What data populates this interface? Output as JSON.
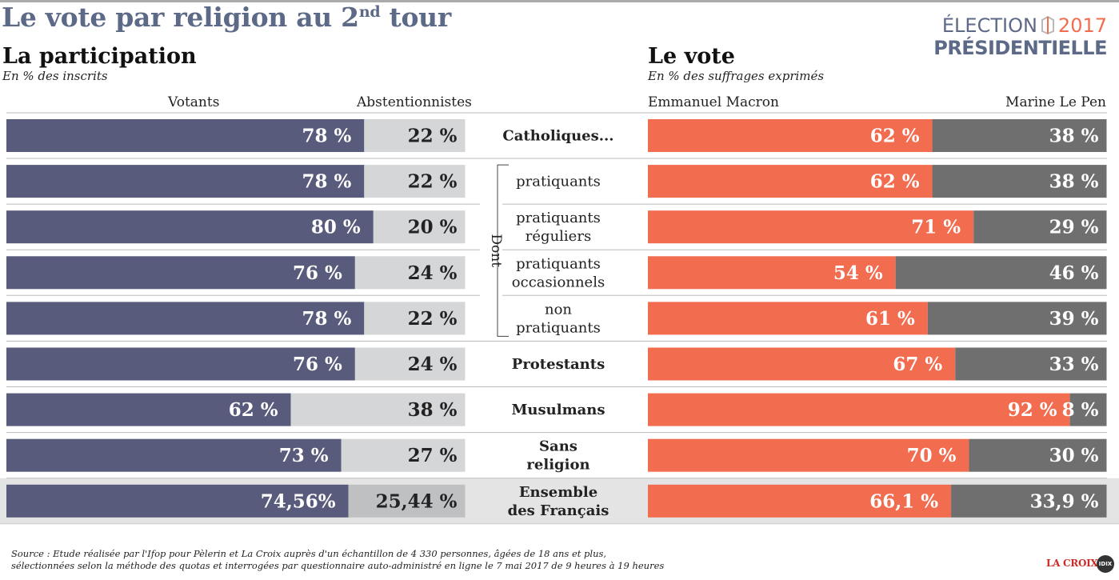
{
  "title_main": "Le vote par religion au 2",
  "title_sup": "nd",
  "title_end": " tour",
  "brand": {
    "line1_a": "ÉLECTION",
    "line1_year": "2017",
    "line2": "PRÉSIDENTIELLE"
  },
  "left_section": {
    "title": "La participation",
    "subtitle": "En % des inscrits"
  },
  "right_section": {
    "title": "Le vote",
    "subtitle": "En % des suffrages exprimés"
  },
  "colors": {
    "votants": "#585b7c",
    "abstention": "#d5d6d8",
    "abstention_total": "#bfc0c2",
    "macron": "#f26c4f",
    "lepen": "#6f6f70",
    "total_row_bg": "#e4e4e5"
  },
  "chart_data": [
    {
      "type": "bar",
      "stacked": true,
      "orientation": "horizontal",
      "categories": [
        "Catholiques...",
        "pratiquants",
        "pratiquants réguliers",
        "pratiquants occasionnels",
        "non pratiquants",
        "Protestants",
        "Musulmans",
        "Sans religion",
        "Ensemble des Français"
      ],
      "series": [
        {
          "name": "Votants",
          "values": [
            78,
            78,
            80,
            76,
            78,
            76,
            62,
            73,
            74.56
          ],
          "labels": [
            "78 %",
            "78 %",
            "80 %",
            "76 %",
            "78 %",
            "76 %",
            "62 %",
            "73 %",
            "74,56%"
          ]
        },
        {
          "name": "Abstentionnistes",
          "values": [
            22,
            22,
            20,
            24,
            22,
            24,
            38,
            27,
            25.44
          ],
          "labels": [
            "22 %",
            "22 %",
            "20 %",
            "24 %",
            "22 %",
            "24 %",
            "38 %",
            "27 %",
            "25,44 %"
          ]
        }
      ],
      "xlim": [
        0,
        100
      ]
    },
    {
      "type": "bar",
      "stacked": true,
      "orientation": "horizontal",
      "categories": [
        "Catholiques...",
        "pratiquants",
        "pratiquants réguliers",
        "pratiquants occasionnels",
        "non pratiquants",
        "Protestants",
        "Musulmans",
        "Sans religion",
        "Ensemble des Français"
      ],
      "series": [
        {
          "name": "Emmanuel Macron",
          "values": [
            62,
            62,
            71,
            54,
            61,
            67,
            92,
            70,
            66.1
          ],
          "labels": [
            "62 %",
            "62 %",
            "71 %",
            "54 %",
            "61 %",
            "67 %",
            "92 %",
            "70 %",
            "66,1 %"
          ]
        },
        {
          "name": "Marine Le Pen",
          "values": [
            38,
            38,
            29,
            46,
            39,
            33,
            8,
            30,
            33.9
          ],
          "labels": [
            "38 %",
            "38 %",
            "29 %",
            "46 %",
            "39 %",
            "33 %",
            "8 %",
            "30 %",
            "33,9 %"
          ]
        }
      ],
      "xlim": [
        0,
        100
      ]
    }
  ],
  "rows": [
    {
      "lines": [
        "Catholiques..."
      ],
      "bold": true
    },
    {
      "lines": [
        "pratiquants"
      ],
      "bold": false
    },
    {
      "lines": [
        "pratiquants",
        "réguliers"
      ],
      "bold": false
    },
    {
      "lines": [
        "pratiquants",
        "occasionnels"
      ],
      "bold": false
    },
    {
      "lines": [
        "non",
        "pratiquants"
      ],
      "bold": false
    },
    {
      "lines": [
        "Protestants"
      ],
      "bold": true
    },
    {
      "lines": [
        "Musulmans"
      ],
      "bold": true
    },
    {
      "lines": [
        "Sans",
        "religion"
      ],
      "bold": true
    },
    {
      "lines": [
        "Ensemble",
        "des Français"
      ],
      "bold": true
    }
  ],
  "dont_label": "Dont",
  "source_line1": "Source : Etude réalisée par l'Ifop pour Pèlerin et La Croix auprès d'un échantillon de 4 330 personnes, âgées de 18 ans et plus,",
  "source_line2": "sélectionnées selon la méthode des quotas et interrogées par questionnaire auto-administré en ligne le 7 mai 2017 de 9 heures à 19 heures",
  "logo_text": "LA CROIX",
  "logo_badge": "IDIX"
}
